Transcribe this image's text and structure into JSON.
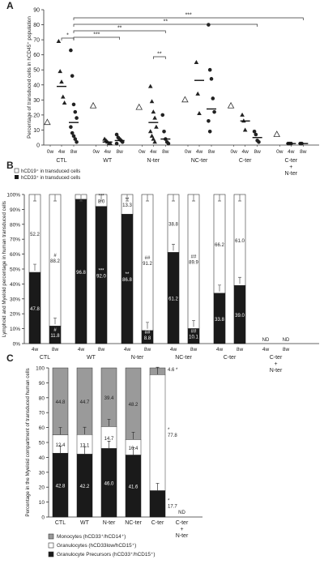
{
  "chart_data": [
    {
      "panel": "A",
      "type": "scatter",
      "ylabel": "Percentage of transduced cells in hCD45⁺ population",
      "ylim": [
        0,
        90
      ],
      "yticks": [
        0,
        10,
        20,
        30,
        40,
        50,
        60,
        70,
        80,
        90
      ],
      "groups": [
        {
          "name": "CTL",
          "points": [
            {
              "t": "0w",
              "marker": "open-triangle",
              "values": [
                15
              ]
            },
            {
              "t": "4w",
              "marker": "triangle",
              "mean": 39,
              "values": [
                69,
                49,
                42,
                32,
                28
              ]
            },
            {
              "t": "8w",
              "marker": "circle",
              "mean": 15,
              "values": [
                63,
                46,
                27,
                22,
                18,
                12,
                8,
                6,
                4,
                2
              ]
            }
          ]
        },
        {
          "name": "WT",
          "points": [
            {
              "t": "0w",
              "marker": "open-triangle",
              "values": [
                26
              ]
            },
            {
              "t": "4w",
              "marker": "triangle",
              "mean": 2,
              "values": [
                4,
                3,
                2,
                1,
                1
              ]
            },
            {
              "t": "8w",
              "marker": "circle",
              "mean": 3,
              "values": [
                7,
                5,
                4,
                3,
                2,
                1
              ]
            }
          ]
        },
        {
          "name": "N-ter",
          "points": [
            {
              "t": "0w",
              "marker": "open-triangle",
              "values": [
                25
              ]
            },
            {
              "t": "4w",
              "marker": "triangle",
              "mean": 15,
              "values": [
                39,
                29,
                22,
                18,
                12,
                9,
                6,
                4,
                2
              ]
            },
            {
              "t": "8w",
              "marker": "circle",
              "mean": 4,
              "values": [
                20,
                9,
                4,
                2,
                1
              ]
            }
          ]
        },
        {
          "name": "NC-ter",
          "points": [
            {
              "t": "0w",
              "marker": "open-triangle",
              "values": [
                30
              ]
            },
            {
              "t": "4w",
              "marker": "triangle",
              "mean": 43,
              "values": [
                55,
                34,
                21
              ]
            },
            {
              "t": "8w",
              "marker": "circle",
              "mean": 24,
              "values": [
                80,
                50,
                44,
                31,
                22,
                16,
                9
              ]
            }
          ]
        },
        {
          "name": "C-ter",
          "points": [
            {
              "t": "0w",
              "marker": "open-triangle",
              "values": [
                26
              ]
            },
            {
              "t": "4w",
              "marker": "triangle",
              "mean": 16,
              "values": [
                20,
                16,
                10
              ]
            },
            {
              "t": "8w",
              "marker": "circle",
              "mean": 5,
              "values": [
                9,
                7,
                3,
                2
              ]
            }
          ]
        },
        {
          "name": "C-ter\n+\nN-ter",
          "points": [
            {
              "t": "0w",
              "marker": "open-triangle",
              "values": [
                7
              ]
            },
            {
              "t": "4w",
              "marker": "circle",
              "mean": 1,
              "values": [
                1,
                1,
                1
              ]
            },
            {
              "t": "8w",
              "marker": "circle",
              "mean": 1,
              "values": [
                1,
                1
              ]
            }
          ]
        }
      ],
      "significance": [
        {
          "label": "*",
          "from": "CTL 4w",
          "to": "CTL 8w"
        },
        {
          "label": "***",
          "from": "CTL 8w",
          "to": "C-ter+N-ter 8w"
        },
        {
          "label": "**",
          "from": "CTL 8w",
          "to": "C-ter 8w"
        },
        {
          "label": "**",
          "from": "CTL 8w",
          "to": "N-ter 8w"
        },
        {
          "label": "***",
          "from": "CTL 8w",
          "to": "WT 8w"
        },
        {
          "label": "**",
          "from": "N-ter 4w",
          "to": "N-ter 8w"
        }
      ]
    },
    {
      "panel": "B",
      "type": "bar",
      "ylabel": "Lymphoid and Myeloid percentage in human transduced cells",
      "ylim": [
        0,
        100
      ],
      "yticks": [
        0,
        10,
        20,
        30,
        40,
        50,
        60,
        70,
        80,
        90,
        100
      ],
      "legend": [
        "hCD19⁺ in transduced cells",
        "hCD33⁺ in transduced cells"
      ],
      "groups": [
        "CTL",
        "WT",
        "N-ter",
        "NC-ter",
        "C-ter",
        "C-ter\n+\nN-ter"
      ],
      "series": [
        {
          "name": "hCD33⁺ in transduced cells",
          "values": [
            47.8,
            11.8,
            96.8,
            92.0,
            86.8,
            8.8,
            61.2,
            10.1,
            33.8,
            39.0,
            null,
            null
          ]
        },
        {
          "name": "hCD19⁺ in transduced cells",
          "values": [
            52.2,
            88.2,
            3.2,
            8.0,
            13.3,
            91.2,
            38.8,
            89.9,
            66.2,
            61.0,
            null,
            null
          ]
        }
      ],
      "bars": [
        {
          "g": "CTL",
          "t": "4w",
          "dark": 47.8,
          "light": 52.2,
          "darkLabel": "47.8",
          "lightLabel": "52.2",
          "sigDark": "",
          "sigLight": ""
        },
        {
          "g": "CTL",
          "t": "8w",
          "dark": 11.8,
          "light": 88.2,
          "darkLabel": "11.8",
          "lightLabel": "88.2",
          "sigDark": "#",
          "sigLight": "#"
        },
        {
          "g": "WT",
          "t": "4w",
          "dark": 96.8,
          "light": 3.2,
          "darkLabel": "96.8",
          "lightLabel": "",
          "sigDark": "",
          "sigLight": ""
        },
        {
          "g": "WT",
          "t": "8w",
          "dark": 92.0,
          "light": 8.0,
          "darkLabel": "92.0",
          "lightLabel": "8.0",
          "sigDark": "***",
          "sigLight": "***"
        },
        {
          "g": "N-ter",
          "t": "4w",
          "dark": 86.8,
          "light": 13.3,
          "darkLabel": "86.8",
          "lightLabel": "13.3",
          "sigDark": "**",
          "sigLight": "**"
        },
        {
          "g": "N-ter",
          "t": "8w",
          "dark": 8.8,
          "light": 91.2,
          "darkLabel": "8.8",
          "lightLabel": "91.2",
          "sigDark": "##",
          "sigLight": "##"
        },
        {
          "g": "NC-ter",
          "t": "4w",
          "dark": 61.2,
          "light": 38.8,
          "darkLabel": "61.2",
          "lightLabel": "38.8",
          "sigDark": "",
          "sigLight": ""
        },
        {
          "g": "NC-ter",
          "t": "8w",
          "dark": 10.1,
          "light": 89.9,
          "darkLabel": "10.1",
          "lightLabel": "89.9",
          "sigDark": "##",
          "sigLight": "##"
        },
        {
          "g": "C-ter",
          "t": "4w",
          "dark": 33.8,
          "light": 66.2,
          "darkLabel": "33.8",
          "lightLabel": "66.2",
          "sigDark": "",
          "sigLight": ""
        },
        {
          "g": "C-ter",
          "t": "8w",
          "dark": 39.0,
          "light": 61.0,
          "darkLabel": "39.0",
          "lightLabel": "61.0",
          "sigDark": "",
          "sigLight": ""
        },
        {
          "g": "C-ter\n+\nN-ter",
          "t": "4w",
          "nd": "ND"
        },
        {
          "g": "C-ter\n+\nN-ter",
          "t": "8w",
          "nd": "ND"
        }
      ]
    },
    {
      "panel": "C",
      "type": "bar",
      "ylabel": "Percentage in the Myeloid compartment of transduced human cells",
      "ylim": [
        0,
        100
      ],
      "yticks": [
        0,
        10,
        20,
        30,
        40,
        50,
        60,
        70,
        80,
        90,
        100
      ],
      "categories": [
        "CTL",
        "WT",
        "N-ter",
        "NC-ter",
        "C-ter",
        "C-ter\n+\nN-ter"
      ],
      "legend": [
        "Monocytes (hCD33⁺/hCD14⁺)",
        "Granulocytes (hCD33low/hCD15⁺)",
        "Granulocyte Precursors (hCD33⁺/hCD15⁺)"
      ],
      "series": [
        {
          "name": "Granulocyte Precursors (hCD33⁺/hCD15⁺)",
          "values": [
            42.8,
            42.2,
            46.0,
            41.6,
            17.7,
            null
          ]
        },
        {
          "name": "Granulocytes (hCD33low/hCD15⁺)",
          "values": [
            12.4,
            13.1,
            14.7,
            10.4,
            77.8,
            null
          ]
        },
        {
          "name": "Monocytes (hCD33⁺/hCD14⁺)",
          "values": [
            44.8,
            44.7,
            39.4,
            48.2,
            4.6,
            null
          ]
        }
      ],
      "labels": [
        {
          "prec": "42.8",
          "gran": "12.4",
          "mono": "44.8"
        },
        {
          "prec": "42.2",
          "gran": "13.1",
          "mono": "44.7"
        },
        {
          "prec": "46.0",
          "gran": "14.7",
          "mono": "39.4"
        },
        {
          "prec": "41.6",
          "gran": "10.4",
          "mono": "48.2"
        },
        {
          "prec": "17.7",
          "gran": "77.8",
          "mono": "4.6",
          "precSig": "*",
          "granSig": "*",
          "monoSig": "*"
        },
        {
          "nd": "ND"
        }
      ]
    }
  ]
}
